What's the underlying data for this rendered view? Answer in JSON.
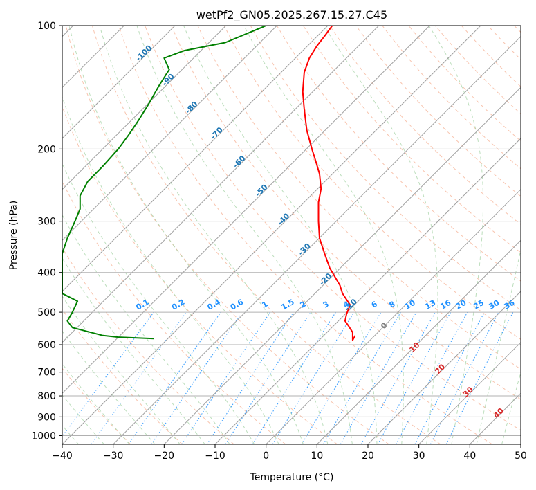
{
  "chart_data": {
    "type": "line",
    "title": "wetPf2_GN05.2025.267.15.27.C45",
    "xlabel": "Temperature (°C)",
    "ylabel": "Pressure (hPa)",
    "xlim": [
      -40,
      50
    ],
    "ylim": [
      1050,
      100
    ],
    "yscale": "log",
    "grid": true,
    "x_ticks": [
      -40,
      -30,
      -20,
      -10,
      0,
      10,
      20,
      30,
      40,
      50
    ],
    "y_ticks": [
      100,
      200,
      300,
      400,
      500,
      600,
      700,
      800,
      900,
      1000
    ],
    "skew_isotherm_labels": {
      "color": "#1f77b4",
      "items": [
        {
          "T": -100,
          "p": 118,
          "label": "-100"
        },
        {
          "T": -90,
          "p": 137,
          "label": "-90"
        },
        {
          "T": -80,
          "p": 160,
          "label": "-80"
        },
        {
          "T": -70,
          "p": 185,
          "label": "-70"
        },
        {
          "T": -60,
          "p": 217,
          "label": "-60"
        },
        {
          "T": -50,
          "p": 255,
          "label": "-50"
        },
        {
          "T": -40,
          "p": 300,
          "label": "-40"
        },
        {
          "T": -30,
          "p": 355,
          "label": "-30"
        },
        {
          "T": -20,
          "p": 420,
          "label": "-20"
        },
        {
          "T": -10,
          "p": 485,
          "label": "-10"
        }
      ]
    },
    "mixing_ratio_labels": {
      "color": "#1e90ff",
      "p": 485,
      "items": [
        {
          "label": "0.1",
          "x": -24
        },
        {
          "label": "0.2",
          "x": -17
        },
        {
          "label": "0.4",
          "x": -10
        },
        {
          "label": "0.6",
          "x": -5.5
        },
        {
          "label": "1",
          "x": 0
        },
        {
          "label": "1.5",
          "x": 4.5
        },
        {
          "label": "2",
          "x": 7.5
        },
        {
          "label": "3",
          "x": 12
        },
        {
          "label": "4",
          "x": 16
        },
        {
          "label": "6",
          "x": 21.5
        },
        {
          "label": "8",
          "x": 25
        },
        {
          "label": "10",
          "x": 28.5
        },
        {
          "label": "13",
          "x": 32.5
        },
        {
          "label": "16",
          "x": 35.5
        },
        {
          "label": "20",
          "x": 38.5
        },
        {
          "label": "25",
          "x": 42
        },
        {
          "label": "30",
          "x": 45
        },
        {
          "label": "36",
          "x": 48
        }
      ]
    },
    "surface_temp_labels": {
      "items": [
        {
          "label": "0",
          "x": 23.5,
          "p": 545,
          "color": "#808080"
        },
        {
          "label": "10",
          "x": 29.5,
          "p": 615,
          "color": "#d62728"
        },
        {
          "label": "20",
          "x": 34.5,
          "p": 695,
          "color": "#d62728"
        },
        {
          "label": "30",
          "x": 40,
          "p": 790,
          "color": "#d62728"
        },
        {
          "label": "40",
          "x": 46,
          "p": 890,
          "color": "#d62728"
        }
      ]
    },
    "series": [
      {
        "color": "#ff0000",
        "x": [
          17.5,
          17,
          17,
          16.2,
          15.5,
          15.8,
          16.5,
          15,
          14.5,
          12.5,
          11.5,
          10.5,
          10.3,
          10.3,
          10.8,
          10.5,
          9.8,
          9,
          8,
          7.5,
          7.2,
          7.5,
          8.5,
          10,
          11.5,
          13
        ],
        "y": [
          570,
          585,
          560,
          540,
          525,
          505,
          480,
          450,
          430,
          390,
          360,
          330,
          300,
          270,
          250,
          230,
          215,
          200,
          180,
          160,
          145,
          130,
          120,
          112,
          106,
          100
        ]
      },
      {
        "color": "#008000",
        "x": [
          -22,
          -29,
          -32,
          -38,
          -39,
          -38,
          -37,
          -40,
          -40,
          -39,
          -37.5,
          -36.5,
          -36.5,
          -35,
          -32,
          -29,
          -27,
          -25,
          -23,
          -21,
          -19,
          -20,
          -16,
          -8,
          0
        ],
        "y": [
          580,
          575,
          570,
          545,
          525,
          500,
          470,
          450,
          360,
          330,
          300,
          280,
          260,
          240,
          220,
          200,
          185,
          170,
          155,
          140,
          128,
          120,
          115,
          110,
          100
        ]
      }
    ]
  }
}
